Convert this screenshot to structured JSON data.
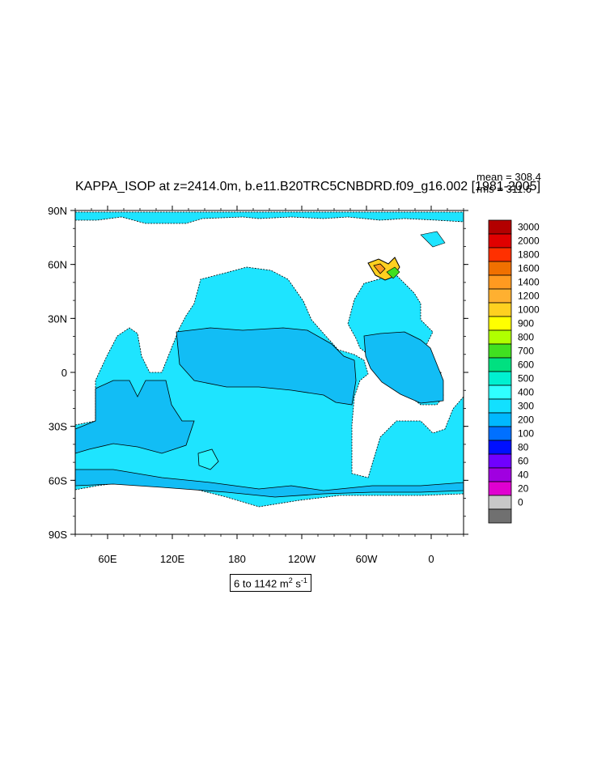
{
  "title": "KAPPA_ISOP at z=2414.0m, b.e11.B20TRC5CNBDRD.f09_g16.002 [1981-2005]",
  "stats": {
    "mean": "mean = 308.4",
    "rms": "rms = 311.6"
  },
  "range_label": {
    "prefix": "6 to 1142 m",
    "sup1": "2",
    "mid": " s",
    "sup2": "-1"
  },
  "lat_ticks": [
    "90N",
    "60N",
    "30N",
    "0",
    "30S",
    "60S",
    "90S"
  ],
  "lon_ticks": [
    "60E",
    "120E",
    "180",
    "120W",
    "60W",
    "0"
  ],
  "colorbar": {
    "levels": [
      "3000",
      "2000",
      "1800",
      "1600",
      "1400",
      "1200",
      "1000",
      "900",
      "800",
      "700",
      "600",
      "500",
      "400",
      "300",
      "200",
      "100",
      "80",
      "60",
      "40",
      "20",
      "0"
    ],
    "colors": [
      "#b30000",
      "#e00000",
      "#ff3000",
      "#f07000",
      "#ff9a20",
      "#ffb030",
      "#ffd020",
      "#ffff00",
      "#b0ff00",
      "#40e020",
      "#00e080",
      "#00f0d0",
      "#30ffff",
      "#12e0ff",
      "#00b8ff",
      "#0070ff",
      "#0010ff",
      "#7000ff",
      "#a000e0",
      "#e000d0",
      "#c8c8c8",
      "#707070"
    ]
  },
  "map": {
    "projection": "cylindrical equidistant",
    "lon_range": [
      30,
      390
    ],
    "lat_range": [
      -90,
      90
    ],
    "colors": {
      "deep": "#1ee4ff",
      "mid": "#12bdf5",
      "light": "#2af2ff",
      "land": "#ffffff"
    }
  }
}
